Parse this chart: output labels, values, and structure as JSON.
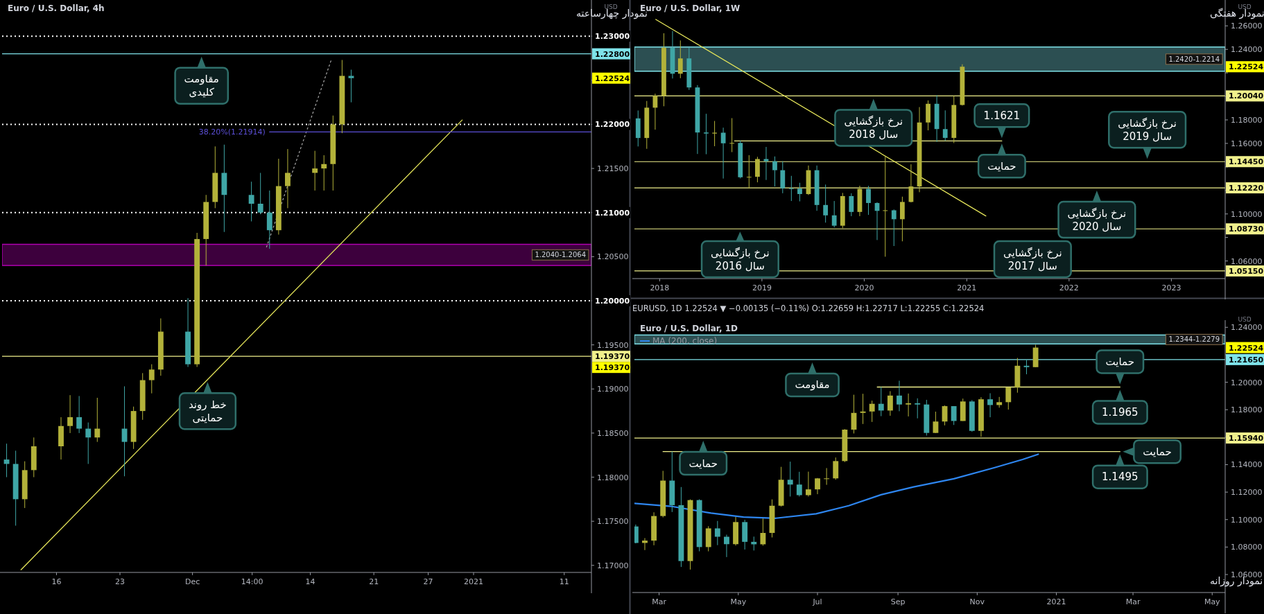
{
  "chart_data": [
    {
      "type": "candlestick",
      "title": "Euro / U.S. Dollar, 4h",
      "subtitle": "نمودار چهارساعته",
      "x": [
        "2020-11-10T12:00",
        "2020-11-11T12:00",
        "2020-11-12T12:00",
        "2020-11-13T12:00",
        "2020-11-16T12:00",
        "2020-11-17T12:00",
        "2020-11-18T12:00",
        "2020-11-19T12:00",
        "2020-11-20T12:00",
        "2020-11-23T12:00",
        "2020-11-24T12:00",
        "2020-11-25T12:00",
        "2020-11-26T12:00",
        "2020-11-27T12:00",
        "2020-11-30T12:00",
        "2020-12-01T12:00",
        "2020-12-02T12:00",
        "2020-12-03T12:00",
        "2020-12-04T12:00",
        "2020-12-07T12:00",
        "2020-12-08T12:00",
        "2020-12-09T12:00",
        "2020-12-10T12:00",
        "2020-12-11T12:00",
        "2020-12-14T12:00",
        "2020-12-15T12:00",
        "2020-12-16T12:00",
        "2020-12-17T12:00",
        "2020-12-18T12:00"
      ],
      "ohlc": [
        [
          1.182,
          1.1838,
          1.18,
          1.1815
        ],
        [
          1.1815,
          1.183,
          1.1745,
          1.1775
        ],
        [
          1.1775,
          1.1818,
          1.1765,
          1.1808
        ],
        [
          1.1808,
          1.1845,
          1.18,
          1.1835
        ],
        [
          1.1835,
          1.1868,
          1.182,
          1.1858
        ],
        [
          1.1858,
          1.1893,
          1.185,
          1.1868
        ],
        [
          1.1868,
          1.1892,
          1.185,
          1.1855
        ],
        [
          1.1855,
          1.1862,
          1.1815,
          1.1845
        ],
        [
          1.1845,
          1.189,
          1.184,
          1.1855
        ],
        [
          1.1855,
          1.1903,
          1.1801,
          1.184
        ],
        [
          1.184,
          1.188,
          1.1832,
          1.1875
        ],
        [
          1.1875,
          1.1918,
          1.1865,
          1.191
        ],
        [
          1.191,
          1.1928,
          1.1895,
          1.1922
        ],
        [
          1.1922,
          1.198,
          1.1915,
          1.1965
        ],
        [
          1.1965,
          1.2003,
          1.1925,
          1.1928
        ],
        [
          1.1928,
          1.2077,
          1.1925,
          1.207
        ],
        [
          1.207,
          1.212,
          1.204,
          1.2112
        ],
        [
          1.2112,
          1.2175,
          1.2105,
          1.2145
        ],
        [
          1.2145,
          1.2177,
          1.2078,
          1.212
        ],
        [
          1.212,
          1.2135,
          1.209,
          1.211
        ],
        [
          1.211,
          1.2145,
          1.2098,
          1.21
        ],
        [
          1.21,
          1.2125,
          1.2059,
          1.208
        ],
        [
          1.208,
          1.2161,
          1.2075,
          1.213
        ],
        [
          1.213,
          1.2172,
          1.2105,
          1.2145
        ],
        [
          1.2145,
          1.217,
          1.2125,
          1.215
        ],
        [
          1.215,
          1.2165,
          1.2125,
          1.2155
        ],
        [
          1.2155,
          1.221,
          1.2125,
          1.22
        ],
        [
          1.22,
          1.2273,
          1.219,
          1.2255
        ],
        [
          1.2255,
          1.2262,
          1.2225,
          1.22524
        ]
      ],
      "series": [
        {
          "type": "line",
          "x": [
            "2020-11-12T02:00",
            "2020-12-30T18:00"
          ],
          "values": [
            1.1695,
            1.2205
          ],
          "color": "#e6e65a"
        },
        {
          "type": "line",
          "x": [
            "2020-12-09T04:00",
            "2020-12-16T08:00"
          ],
          "values": [
            1.2061,
            1.2274
          ],
          "color": "#9e9e9e",
          "line_style": "dotted"
        },
        {
          "type": "line",
          "name": "38.20%(1.21914)",
          "x": [
            "2020-12-09T12:00",
            "2021-01-14"
          ],
          "values": [
            1.21914,
            1.21914
          ],
          "color": "#5b4fd6"
        }
      ],
      "ref_lines": [
        {
          "axis": "y",
          "value": 1.23,
          "label": "1.23000",
          "color": "#ffffff",
          "line_style": "dotted"
        },
        {
          "axis": "y",
          "value": 1.22,
          "label": "1.22000",
          "color": "#ffffff",
          "line_style": "dotted"
        },
        {
          "axis": "y",
          "value": 1.21,
          "label": "1.21000",
          "color": "#ffffff",
          "line_style": "dotted"
        },
        {
          "axis": "y",
          "value": 1.2,
          "label": "1.20000",
          "color": "#ffffff",
          "line_style": "dotted"
        },
        {
          "axis": "y",
          "value": 1.228,
          "label": "1.22800",
          "color": "#7fe3ea"
        },
        {
          "axis": "y",
          "value": 1.1937,
          "label": "1.19370",
          "color": "#f0f08c"
        }
      ],
      "bands": [
        {
          "axis": "y",
          "from": 1.204,
          "to": 1.2064,
          "label": "1.2040-1.2064",
          "color": "#b000b0"
        }
      ],
      "annotations": [
        "USD",
        "1.22524",
        "1.19370",
        {
          "text": "مقاومت\nکلیدی",
          "x": "2020-12-02T00:00",
          "y": 1.228
        },
        {
          "text": "خط روند\nحمایتی",
          "x": "2020-12-02T16:00",
          "y": 1.1911
        }
      ],
      "xlim": [
        "2020-11-10T00:00",
        "2021-01-14"
      ],
      "xticks": [
        {
          "value": "2020-11-16",
          "label": "16"
        },
        {
          "value": "2020-11-23",
          "label": "23"
        },
        {
          "value": "2020-12-01",
          "label": "Dec"
        },
        {
          "value": "2020-12-07T14:00",
          "label": "14:00"
        },
        {
          "value": "2020-12-14",
          "label": "14"
        },
        {
          "value": "2020-12-21",
          "label": "21"
        },
        {
          "value": "2020-12-27",
          "label": "27"
        },
        {
          "value": "2021-01-01",
          "label": "2021"
        },
        {
          "value": "2021-01-11",
          "label": "11"
        }
      ],
      "ylim": [
        1.1692,
        1.2341
      ],
      "yticks": [
        {
          "value": 1.17,
          "label": "1.17000"
        },
        {
          "value": 1.175,
          "label": "1.17500"
        },
        {
          "value": 1.18,
          "label": "1.18000"
        },
        {
          "value": 1.185,
          "label": "1.18500"
        },
        {
          "value": 1.19,
          "label": "1.19000"
        },
        {
          "value": 1.195,
          "label": "1.19500"
        },
        {
          "value": 1.2,
          "label": null
        },
        {
          "value": 1.205,
          "label": "1.20500"
        },
        {
          "value": 1.21,
          "label": null
        },
        {
          "value": 1.215,
          "label": "1.21500"
        },
        {
          "value": 1.22,
          "label": null
        },
        {
          "value": 1.225,
          "label": null
        },
        {
          "value": 1.23,
          "label": null
        }
      ]
    },
    {
      "type": "candlestick",
      "title": "Euro / U.S. Dollar, 1W",
      "subtitle": "نمودار هفتگی",
      "x": [
        "2017-10-16",
        "2017-11-16",
        "2017-12-16",
        "2018-01-16",
        "2018-02-16",
        "2018-03-16",
        "2018-04-16",
        "2018-05-16",
        "2018-06-16",
        "2018-07-16",
        "2018-08-16",
        "2018-09-16",
        "2018-10-16",
        "2018-11-16",
        "2018-12-16",
        "2019-01-16",
        "2019-02-16",
        "2019-03-16",
        "2019-04-16",
        "2019-05-16",
        "2019-06-16",
        "2019-07-16",
        "2019-08-16",
        "2019-09-16",
        "2019-10-16",
        "2019-11-16",
        "2019-12-16",
        "2020-01-16",
        "2020-02-16",
        "2020-03-16",
        "2020-04-16",
        "2020-05-16",
        "2020-06-16",
        "2020-07-16",
        "2020-08-16",
        "2020-09-16",
        "2020-10-16",
        "2020-11-16",
        "2020-12-16"
      ],
      "ohlc": [
        [
          1.1813,
          1.188,
          1.1574,
          1.1646
        ],
        [
          1.1646,
          1.1961,
          1.1554,
          1.1904
        ],
        [
          1.1904,
          1.2023,
          1.1717,
          1.2005
        ],
        [
          1.2005,
          1.2537,
          1.1916,
          1.2414
        ],
        [
          1.2414,
          1.2556,
          1.2152,
          1.2193
        ],
        [
          1.2193,
          1.2476,
          1.2155,
          1.2323
        ],
        [
          1.2323,
          1.2414,
          1.2055,
          1.2076
        ],
        [
          1.2076,
          1.2096,
          1.151,
          1.1693
        ],
        [
          1.1693,
          1.1852,
          1.1508,
          1.1684
        ],
        [
          1.1684,
          1.1791,
          1.1576,
          1.1691
        ],
        [
          1.1691,
          1.1734,
          1.1301,
          1.1601
        ],
        [
          1.1601,
          1.1815,
          1.1526,
          1.1604
        ],
        [
          1.1604,
          1.1625,
          1.1302,
          1.1312
        ],
        [
          1.1312,
          1.15,
          1.1216,
          1.1316
        ],
        [
          1.1316,
          1.1486,
          1.1269,
          1.1467
        ],
        [
          1.1467,
          1.157,
          1.1289,
          1.1448
        ],
        [
          1.1448,
          1.1489,
          1.1234,
          1.1372
        ],
        [
          1.1372,
          1.1448,
          1.1176,
          1.1218
        ],
        [
          1.1218,
          1.1324,
          1.111,
          1.1215
        ],
        [
          1.1215,
          1.1265,
          1.1107,
          1.1169
        ],
        [
          1.1169,
          1.1412,
          1.1161,
          1.1372
        ],
        [
          1.1372,
          1.1412,
          1.1027,
          1.1076
        ],
        [
          1.1076,
          1.125,
          1.0926,
          1.0988
        ],
        [
          1.0988,
          1.111,
          1.0885,
          1.09
        ],
        [
          1.09,
          1.1179,
          1.0879,
          1.1152
        ],
        [
          1.1152,
          1.1176,
          1.0981,
          1.1017
        ],
        [
          1.1017,
          1.124,
          1.0981,
          1.1213
        ],
        [
          1.1213,
          1.1239,
          1.0992,
          1.1093
        ],
        [
          1.1093,
          1.1099,
          1.0778,
          1.1026
        ],
        [
          1.1026,
          1.1496,
          1.0636,
          1.1031
        ],
        [
          1.1031,
          1.1038,
          1.0727,
          1.0955
        ],
        [
          1.0955,
          1.1147,
          1.0767,
          1.1102
        ],
        [
          1.1102,
          1.1422,
          1.1098,
          1.1234
        ],
        [
          1.1234,
          1.1909,
          1.1185,
          1.1778
        ],
        [
          1.1778,
          1.1966,
          1.1711,
          1.1937
        ],
        [
          1.1937,
          1.2011,
          1.1612,
          1.1722
        ],
        [
          1.1722,
          1.1881,
          1.1622,
          1.1647
        ],
        [
          1.1647,
          1.2004,
          1.1603,
          1.1927
        ],
        [
          1.1927,
          1.2273,
          1.1922,
          1.22524
        ]
      ],
      "series": [
        {
          "type": "line",
          "x": [
            "2017-12-18",
            "2021-03-10"
          ],
          "values": [
            1.2655,
            1.0983
          ],
          "color": "#e6e65a"
        },
        {
          "type": "line",
          "x": [
            "2018-09-25",
            "2021-05-06"
          ],
          "values": [
            1.1621,
            1.1621
          ],
          "color": "#f0f08c"
        }
      ],
      "ref_lines": [
        {
          "axis": "y",
          "value": 1.2004,
          "label": "1.20040",
          "color": "#f0f08c"
        },
        {
          "axis": "y",
          "value": 1.1445,
          "label": "1.14450",
          "color": "#f0f08c"
        },
        {
          "axis": "y",
          "value": 1.1222,
          "label": "1.12220",
          "color": "#f0f08c"
        },
        {
          "axis": "y",
          "value": 1.0873,
          "label": "1.08730",
          "color": "#f0f08c"
        },
        {
          "axis": "y",
          "value": 1.0515,
          "label": "1.05150",
          "color": "#f0f08c"
        }
      ],
      "bands": [
        {
          "axis": "y",
          "from": 1.2214,
          "to": 1.242,
          "label": "1.2420-1.2214",
          "color": "#7fe3ea"
        }
      ],
      "annotations": [
        "USD",
        "1.22524",
        {
          "text": "1.1621",
          "x": "2021-05-06",
          "y": 1.1621
        },
        {
          "text": "نرخ بازگشایی\nسال 2018",
          "x": "2020-02-03",
          "y": 1.2004
        },
        {
          "text": "حمایت",
          "x": "2021-05-06",
          "y": 1.1621
        },
        {
          "text": "نرخ بازگشایی\nسال 2019",
          "x": "2022-10-07",
          "y": 1.1445
        },
        {
          "text": "نرخ بازگشایی\nسال 2020",
          "x": "2022-04-10",
          "y": 1.1222
        },
        {
          "text": "نرخ بازگشایی\nسال 2016",
          "x": "2018-10-15",
          "y": 1.0873
        },
        {
          "text": "نرخ بازگشایی\nسال 2017",
          "x": "2021-08-24",
          "y": 1.0515
        }
      ],
      "xlim": [
        "2017-10-03",
        "2023-07-12"
      ],
      "xticks": [
        {
          "value": "2018-01-01",
          "label": "2018"
        },
        {
          "value": "2019-01-01",
          "label": "2019"
        },
        {
          "value": "2020-01-01",
          "label": "2020"
        },
        {
          "value": "2021-01-01",
          "label": "2021"
        },
        {
          "value": "2022-01-01",
          "label": "2022"
        },
        {
          "value": "2023-01-01",
          "label": "2023"
        }
      ],
      "ylim": [
        1.045,
        1.282
      ],
      "yticks": [
        {
          "value": 1.06,
          "label": "1.06000"
        },
        {
          "value": 1.08,
          "label": null
        },
        {
          "value": 1.1,
          "label": "1.10000"
        },
        {
          "value": 1.12,
          "label": null
        },
        {
          "value": 1.14,
          "label": null
        },
        {
          "value": 1.16,
          "label": "1.16000"
        },
        {
          "value": 1.18,
          "label": "1.18000"
        },
        {
          "value": 1.2,
          "label": null
        },
        {
          "value": 1.22,
          "label": null
        },
        {
          "value": 1.24,
          "label": "1.24000"
        },
        {
          "value": 1.26,
          "label": "1.26000"
        }
      ]
    },
    {
      "type": "candlestick",
      "title": "Euro / U.S. Dollar, 1D",
      "subtitle": "نمودار روزانه",
      "legend": "top left",
      "x": [
        "2020-02-12",
        "2020-02-19",
        "2020-02-26",
        "2020-03-04",
        "2020-03-11",
        "2020-03-18",
        "2020-03-25",
        "2020-04-01",
        "2020-04-08",
        "2020-04-15",
        "2020-04-22",
        "2020-04-29",
        "2020-05-06",
        "2020-05-13",
        "2020-05-20",
        "2020-05-27",
        "2020-06-03",
        "2020-06-10",
        "2020-06-17",
        "2020-06-24",
        "2020-07-01",
        "2020-07-08",
        "2020-07-15",
        "2020-07-22",
        "2020-07-29",
        "2020-08-05",
        "2020-08-12",
        "2020-08-19",
        "2020-08-26",
        "2020-09-02",
        "2020-09-09",
        "2020-09-16",
        "2020-09-23",
        "2020-09-30",
        "2020-10-07",
        "2020-10-14",
        "2020-10-21",
        "2020-10-28",
        "2020-11-04",
        "2020-11-11",
        "2020-11-18",
        "2020-11-25",
        "2020-12-02",
        "2020-12-09",
        "2020-12-16"
      ],
      "ohlc": [
        [
          1.095,
          1.0964,
          1.0827,
          1.083
        ],
        [
          1.083,
          1.0865,
          1.0778,
          1.0847
        ],
        [
          1.0847,
          1.1053,
          1.0813,
          1.1026
        ],
        [
          1.1026,
          1.1355,
          1.1016,
          1.1284
        ],
        [
          1.1284,
          1.1496,
          1.1055,
          1.1105
        ],
        [
          1.1105,
          1.1237,
          1.0655,
          1.0698
        ],
        [
          1.0698,
          1.1147,
          1.0636,
          1.1142
        ],
        [
          1.1142,
          1.1148,
          1.0769,
          1.08
        ],
        [
          1.08,
          1.0952,
          1.0769,
          1.0936
        ],
        [
          1.0936,
          1.099,
          1.0814,
          1.0875
        ],
        [
          1.0875,
          1.089,
          1.0727,
          1.0821
        ],
        [
          1.0821,
          1.1019,
          1.0811,
          1.0982
        ],
        [
          1.0982,
          1.0999,
          1.0782,
          1.0838
        ],
        [
          1.0838,
          1.0876,
          1.0775,
          1.082
        ],
        [
          1.082,
          1.1008,
          1.081,
          1.0903
        ],
        [
          1.0903,
          1.1147,
          1.087,
          1.1101
        ],
        [
          1.1101,
          1.1384,
          1.1095,
          1.129
        ],
        [
          1.129,
          1.1422,
          1.1168,
          1.1255
        ],
        [
          1.1255,
          1.1348,
          1.1168,
          1.1178
        ],
        [
          1.1178,
          1.1349,
          1.1168,
          1.122
        ],
        [
          1.122,
          1.1303,
          1.1185,
          1.13
        ],
        [
          1.13,
          1.1375,
          1.1253,
          1.13
        ],
        [
          1.13,
          1.1452,
          1.129,
          1.1426
        ],
        [
          1.1426,
          1.1659,
          1.1419,
          1.1655
        ],
        [
          1.1655,
          1.1909,
          1.1627,
          1.1777
        ],
        [
          1.1777,
          1.1916,
          1.1696,
          1.1787
        ],
        [
          1.1787,
          1.1866,
          1.1711,
          1.1843
        ],
        [
          1.1843,
          1.1966,
          1.1753,
          1.1794
        ],
        [
          1.1794,
          1.1935,
          1.1756,
          1.1903
        ],
        [
          1.1903,
          1.2011,
          1.1789,
          1.1838
        ],
        [
          1.1838,
          1.1918,
          1.1751,
          1.1847
        ],
        [
          1.1847,
          1.1883,
          1.1737,
          1.1838
        ],
        [
          1.1838,
          1.1872,
          1.1612,
          1.1631
        ],
        [
          1.1631,
          1.1786,
          1.163,
          1.1714
        ],
        [
          1.1714,
          1.1831,
          1.1686,
          1.1826
        ],
        [
          1.1826,
          1.1826,
          1.1689,
          1.1718
        ],
        [
          1.1718,
          1.1881,
          1.1718,
          1.186
        ],
        [
          1.186,
          1.187,
          1.164,
          1.1646
        ],
        [
          1.1646,
          1.1891,
          1.1603,
          1.1876
        ],
        [
          1.1876,
          1.192,
          1.1745,
          1.1834
        ],
        [
          1.1834,
          1.1893,
          1.1815,
          1.1855
        ],
        [
          1.1855,
          1.1963,
          1.1801,
          1.1963
        ],
        [
          1.1963,
          1.2177,
          1.1924,
          1.212
        ],
        [
          1.212,
          1.2167,
          1.2058,
          1.211
        ],
        [
          1.211,
          1.2273,
          1.211,
          1.22524
        ]
      ],
      "series": [
        {
          "type": "line",
          "name": "MA (200, close)",
          "color": "#2e86f0",
          "x": [
            "2020-02-11",
            "2020-03-10",
            "2020-04-10",
            "2020-05-05",
            "2020-05-30",
            "2020-06-30",
            "2020-07-25",
            "2020-08-19",
            "2020-09-13",
            "2020-10-14",
            "2020-11-14",
            "2020-12-06",
            "2020-12-18"
          ],
          "values": [
            1.1118,
            1.1097,
            1.1047,
            1.1018,
            1.101,
            1.1042,
            1.1101,
            1.1181,
            1.1238,
            1.1297,
            1.1377,
            1.1438,
            1.1476
          ]
        },
        {
          "type": "line",
          "x": [
            "2020-08-16",
            "2021-02-19"
          ],
          "values": [
            1.1965,
            1.1965
          ],
          "color": "#f0f08c"
        },
        {
          "type": "line",
          "x": [
            "2020-03-04",
            "2021-02-19"
          ],
          "values": [
            1.1495,
            1.1495
          ],
          "color": "#f0f08c"
        }
      ],
      "ref_lines": [
        {
          "axis": "y",
          "value": 1.2165,
          "label": "1.21650",
          "color": "#7fe3ea"
        },
        {
          "axis": "y",
          "value": 1.1594,
          "label": "1.15940",
          "color": "#f0f08c"
        }
      ],
      "bands": [
        {
          "axis": "y",
          "from": 1.2279,
          "to": 1.2344,
          "label": "1.2344-1.2279",
          "color": "#7fe3ea"
        }
      ],
      "annotations": [
        "USD",
        "EURUSD, 1D  1.22524 ▼ −0.00135 (−0.11%)  O:1.22659  H:1.22717  L:1.22255  C:1.22524",
        "1.22524",
        {
          "text": "1.1965",
          "x": "2021-02-19",
          "y": 1.1965
        },
        {
          "text": "1.1495",
          "x": "2021-02-19",
          "y": 1.1495
        },
        {
          "text": "مقاومت",
          "x": "2020-06-27",
          "y": 1.2165
        },
        {
          "text": "حمایت",
          "x": "2021-02-19",
          "y": 1.1965
        },
        {
          "text": "حمایت",
          "x": "2020-04-04",
          "y": 1.1594
        },
        {
          "text": "حمایت",
          "x": "2021-02-19",
          "y": 1.1495
        }
      ],
      "xlim": [
        "2020-02-11",
        "2021-05-11"
      ],
      "xticks": [
        {
          "value": "2020-03-01",
          "label": "Mar"
        },
        {
          "value": "2020-05-01",
          "label": "May"
        },
        {
          "value": "2020-07-01",
          "label": "Jul"
        },
        {
          "value": "2020-09-01",
          "label": "Sep"
        },
        {
          "value": "2020-11-01",
          "label": "Nov"
        },
        {
          "value": "2021-01-01",
          "label": "2021"
        },
        {
          "value": "2021-03-01",
          "label": "Mar"
        },
        {
          "value": "2021-05-01",
          "label": "May"
        }
      ],
      "ylim": [
        1.0469,
        1.2452
      ],
      "yticks": [
        {
          "value": 1.06,
          "label": "1.06000"
        },
        {
          "value": 1.08,
          "label": "1.08000"
        },
        {
          "value": 1.1,
          "label": "1.10000"
        },
        {
          "value": 1.12,
          "label": "1.12000"
        },
        {
          "value": 1.14,
          "label": "1.14000"
        },
        {
          "value": 1.16,
          "label": null
        },
        {
          "value": 1.18,
          "label": "1.18000"
        },
        {
          "value": 1.2,
          "label": "1.20000"
        },
        {
          "value": 1.22,
          "label": null
        },
        {
          "value": 1.24,
          "label": "1.24000"
        }
      ]
    }
  ]
}
